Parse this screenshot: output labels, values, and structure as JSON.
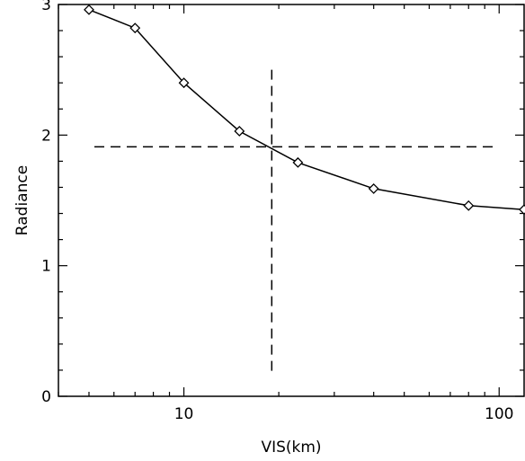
{
  "chart_data": {
    "type": "line",
    "title": "",
    "xlabel": "VIS(km)",
    "ylabel": "Radiance",
    "x_scale": "log",
    "xlim": [
      4,
      120
    ],
    "ylim": [
      0,
      3
    ],
    "grid": false,
    "x_ticks": [
      {
        "value": 10,
        "label": "10"
      },
      {
        "value": 100,
        "label": "100"
      }
    ],
    "y_ticks": [
      {
        "value": 0,
        "label": "0"
      },
      {
        "value": 1,
        "label": "1"
      },
      {
        "value": 2,
        "label": "2"
      },
      {
        "value": 3,
        "label": "3"
      }
    ],
    "series": [
      {
        "marker": "diamond",
        "x": [
          5,
          7,
          10,
          15,
          23,
          40,
          80,
          120
        ],
        "y": [
          2.96,
          2.82,
          2.4,
          2.03,
          1.79,
          1.59,
          1.46,
          1.43
        ]
      }
    ],
    "reference_lines": {
      "horizontal": {
        "y": 1.91,
        "x_from": 4,
        "x_to": 120,
        "style": "dashed"
      },
      "vertical": {
        "x": 19,
        "y_from": 0.17,
        "y_to": 2.5,
        "style": "dashed"
      }
    },
    "colors": {
      "line": "#000000",
      "marker_fill": "#ffffff",
      "background": "#ffffff"
    }
  }
}
